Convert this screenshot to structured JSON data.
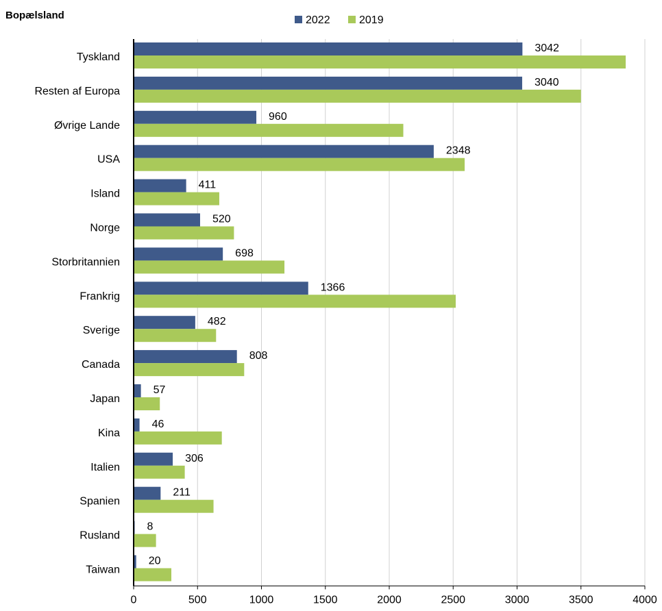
{
  "chart_data": {
    "type": "bar",
    "orientation": "horizontal",
    "title": "",
    "category_axis_title": "Bopælsland",
    "categories": [
      "Tyskland",
      "Resten af Europa",
      "Øvrige Lande",
      "USA",
      "Island",
      "Norge",
      "Storbritannien",
      "Frankrig",
      "Sverige",
      "Canada",
      "Japan",
      "Kina",
      "Italien",
      "Spanien",
      "Rusland",
      "Taiwan"
    ],
    "series": [
      {
        "name": "2022",
        "color": "#3f5a8a",
        "values": [
          3042,
          3040,
          960,
          2348,
          411,
          520,
          698,
          1366,
          482,
          808,
          57,
          46,
          306,
          211,
          8,
          20
        ],
        "data_labels": [
          "3042",
          "3040",
          "960",
          "2348",
          "411",
          "520",
          "698",
          "1366",
          "482",
          "808",
          "57",
          "46",
          "306",
          "211",
          "8",
          "20"
        ]
      },
      {
        "name": "2019",
        "color": "#a9c95a",
        "values": [
          3850,
          3500,
          2110,
          2590,
          670,
          785,
          1180,
          2520,
          645,
          865,
          205,
          690,
          400,
          625,
          175,
          295
        ]
      }
    ],
    "xlim": [
      0,
      4000
    ],
    "x_ticks": [
      "0",
      "500",
      "1000",
      "1500",
      "2000",
      "2500",
      "3000",
      "3500",
      "4000"
    ],
    "x_tick_values": [
      0,
      500,
      1000,
      1500,
      2000,
      2500,
      3000,
      3500,
      4000
    ],
    "grid": "vertical",
    "legend_position": "top-center"
  }
}
